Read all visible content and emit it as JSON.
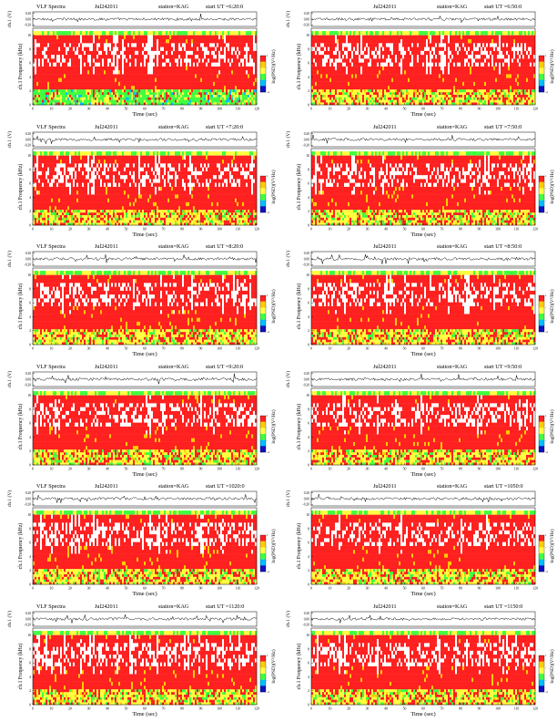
{
  "page": {
    "panel_titles": [
      {
        "left": "VLF Spectra",
        "date": "Jul242011",
        "station": "station=KAG",
        "start": "start  UT =6:20:0"
      },
      {
        "left": "",
        "date": "Jul242011",
        "station": "station=KAG",
        "start": "start  UT =6:50:0"
      },
      {
        "left": "VLF Spectra",
        "date": "Jul242011",
        "station": "station=KAG",
        "start": "start  UT =7:20:0"
      },
      {
        "left": "",
        "date": "Jul242011",
        "station": "station=KAG",
        "start": "start  UT =7:50:0"
      },
      {
        "left": "VLF Spectra",
        "date": "Jul242011",
        "station": "station=KAG",
        "start": "start  UT =8:20:0"
      },
      {
        "left": "",
        "date": "Jul242011",
        "station": "station=KAG",
        "start": "start  UT =8:50:0"
      },
      {
        "left": "VLF Spectra",
        "date": "Jul242011",
        "station": "station=KAG",
        "start": "start  UT =9:20:0"
      },
      {
        "left": "",
        "date": "Jul242011",
        "station": "station=KAG",
        "start": "start  UT =9:50:0"
      },
      {
        "left": "VLF Spectra",
        "date": "Jul242011",
        "station": "station=KAG",
        "start": "start  UT =1020:0"
      },
      {
        "left": "",
        "date": "Jul242011",
        "station": "station=KAG",
        "start": "start  UT =1050:0"
      },
      {
        "left": "VLF Spectra",
        "date": "Jul242011",
        "station": "station=KAG",
        "start": "start  UT =1120:0"
      },
      {
        "left": "",
        "date": "Jul242011",
        "station": "station=KAG",
        "start": "start  UT =1150:0"
      }
    ]
  },
  "chart_data": {
    "type": "heatmap",
    "panel_count": 12,
    "layout": "6 rows x 2 columns",
    "waveform": {
      "ylabel": "ch.1 (V)",
      "yticks": [
        "0.20",
        "0.00",
        "-0.20"
      ],
      "ylim": [
        -0.25,
        0.25
      ]
    },
    "spectrogram": {
      "ylabel": "ch.1 Frequency (kHz)",
      "ylabel_left": "Frequency",
      "ylabel_unit": "(kHz)",
      "ylabel_ch": "ch.1",
      "yticks": [
        "0",
        "2",
        "4",
        "6",
        "8",
        "10"
      ],
      "ylim": [
        0,
        11
      ],
      "xlabel": "Time  (sec)",
      "xticks": [
        "0",
        "10",
        "20",
        "30",
        "40",
        "50",
        "60",
        "70",
        "80",
        "90",
        "100",
        "110",
        "120"
      ],
      "xlim": [
        0,
        120
      ],
      "colorbar_label": "log(PSD(V^2/Hz))",
      "colorbar_label_display": "log(PSD)(V²/Hz)",
      "colorbar_range": [
        -4,
        1
      ],
      "colorbar_ticks": [
        "1",
        "-",
        "-",
        "-4"
      ]
    },
    "colors": {
      "high": "#ff2020",
      "mid_high": "#ffcc00",
      "mid": "#ffff40",
      "mid_low": "#40ff40",
      "low": "#00bfff",
      "lowest": "#1010c0",
      "gap": "#ffffff"
    }
  }
}
